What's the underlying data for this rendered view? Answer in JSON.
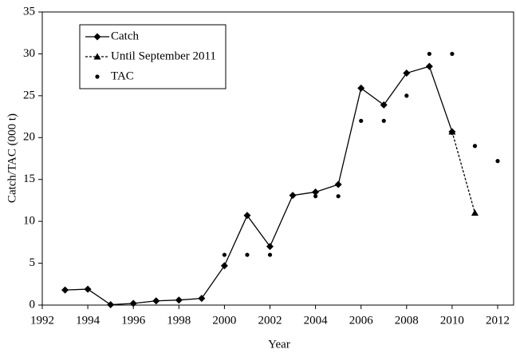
{
  "chart_data": {
    "type": "line",
    "x_label": "Year",
    "y_label": "Catch/TAC (000 t)",
    "xlim": [
      1992,
      2012.7
    ],
    "xticks": [
      1992,
      1994,
      1996,
      1998,
      2000,
      2002,
      2004,
      2006,
      2008,
      2010,
      2012
    ],
    "ylim": [
      0,
      35
    ],
    "yticks": [
      0,
      5,
      10,
      15,
      20,
      25,
      30,
      35
    ],
    "legend": "upper-left",
    "series": [
      {
        "name": "Catch",
        "color": "#000000",
        "marker": "diamond",
        "line": "solid",
        "x": [
          1993,
          1994,
          1995,
          1996,
          1997,
          1998,
          1999,
          2000,
          2001,
          2002,
          2003,
          2004,
          2005,
          2006,
          2007,
          2008,
          2009,
          2010
        ],
        "values": [
          1.8,
          1.9,
          0.05,
          0.2,
          0.5,
          0.6,
          0.8,
          4.7,
          10.7,
          7.0,
          13.1,
          13.5,
          14.4,
          25.9,
          23.9,
          27.7,
          28.5,
          20.7
        ]
      },
      {
        "name": "Until September 2011",
        "color": "#000000",
        "marker": "triangle",
        "line": "dashed",
        "x": [
          2010,
          2011
        ],
        "values": [
          20.7,
          11.0
        ]
      },
      {
        "name": "TAC",
        "color": "#000000",
        "marker": "dot",
        "line": "none",
        "x": [
          2000,
          2001,
          2002,
          2004,
          2005,
          2006,
          2007,
          2008,
          2009,
          2010,
          2011,
          2012
        ],
        "values": [
          6,
          6,
          6,
          13,
          13,
          22,
          22,
          25,
          30,
          30,
          19,
          17.2
        ]
      }
    ]
  }
}
